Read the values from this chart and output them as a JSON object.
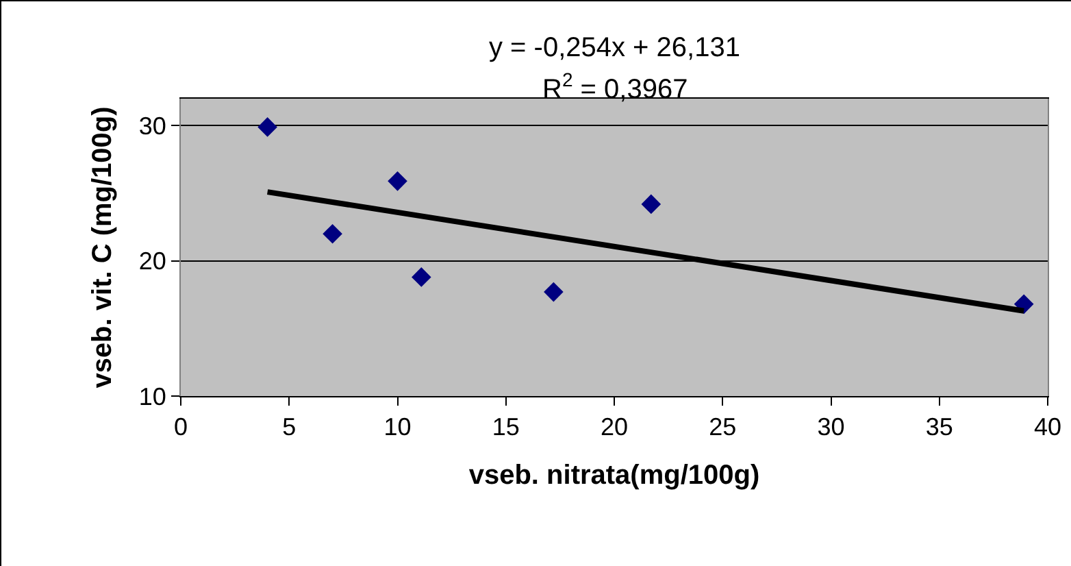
{
  "chart_data": {
    "type": "scatter",
    "xlabel": "vseb. nitrata(mg/100g)",
    "ylabel": "vseb. vit. C (mg/100g)",
    "x": [
      4.0,
      7.0,
      10.0,
      11.1,
      17.2,
      21.7,
      38.9
    ],
    "series": [
      {
        "type": "scatter",
        "color": "#000080",
        "marker": "diamond",
        "values": [
          29.9,
          22.0,
          25.9,
          18.8,
          17.7,
          24.2,
          16.8
        ]
      },
      {
        "type": "line",
        "color": "#000000",
        "line_style": "solid",
        "marker": "none",
        "x": [
          4.0,
          38.9
        ],
        "values": [
          25.1,
          16.3
        ]
      }
    ],
    "xlim": [
      0,
      40
    ],
    "xticks": [
      0,
      5,
      10,
      15,
      20,
      25,
      30,
      35,
      40
    ],
    "ylim": [
      10,
      32
    ],
    "yticks": [
      10,
      20,
      30
    ],
    "grid": "y",
    "annotations": [
      "y = -0,254x + 26,131",
      "R$^{2}$ = 0,3967"
    ]
  }
}
